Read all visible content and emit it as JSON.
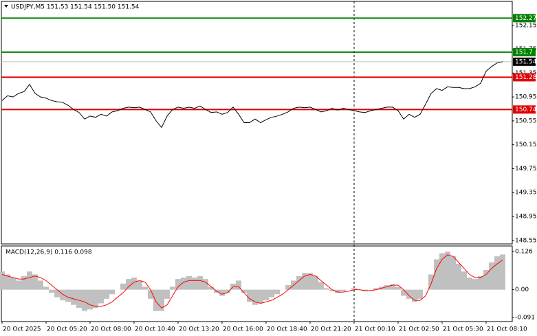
{
  "chart_data": [
    {
      "type": "line",
      "title": "USDJPY,M5  151.53 151.54 151.50 151.54",
      "color": "#000000",
      "values": [
        150.89,
        150.97,
        150.95,
        151.01,
        151.04,
        151.16,
        151.01,
        150.95,
        150.93,
        150.89,
        150.87,
        150.86,
        150.81,
        150.74,
        150.69,
        150.58,
        150.63,
        150.61,
        150.66,
        150.63,
        150.7,
        150.72,
        150.76,
        150.78,
        150.77,
        150.78,
        150.74,
        150.7,
        150.55,
        150.44,
        150.63,
        150.74,
        150.78,
        150.76,
        150.78,
        150.76,
        150.8,
        150.74,
        150.69,
        150.7,
        150.66,
        150.69,
        150.78,
        150.66,
        150.52,
        150.52,
        150.58,
        150.52,
        150.57,
        150.61,
        150.63,
        150.66,
        150.7,
        150.76,
        150.78,
        150.77,
        150.78,
        150.74,
        150.7,
        150.72,
        150.76,
        150.73,
        150.76,
        150.74,
        150.72,
        150.7,
        150.69,
        150.72,
        150.74,
        150.76,
        150.78,
        150.78,
        150.72,
        150.58,
        150.66,
        150.61,
        150.66,
        150.83,
        151.01,
        151.09,
        151.06,
        151.12,
        151.11,
        151.11,
        151.09,
        151.09,
        151.12,
        151.18,
        151.38,
        151.46,
        151.52,
        151.54
      ],
      "ylim": [
        148.49,
        152.55
      ],
      "yticks": [
        152.15,
        151.75,
        151.35,
        150.95,
        150.55,
        150.15,
        149.75,
        149.35,
        148.95,
        148.55
      ],
      "levels": [
        {
          "value": 152.27,
          "color": "#008000"
        },
        {
          "value": 151.7,
          "color": "#008000"
        },
        {
          "value": 151.28,
          "color": "#e00000"
        },
        {
          "value": 150.74,
          "color": "#e00000"
        }
      ],
      "last": 151.54
    },
    {
      "type": "bar",
      "title": "MACD(12,26,9) 0.116 0.098",
      "categories": [
        "20 Oct 2025",
        null,
        null,
        null,
        null,
        null,
        null,
        null,
        "20 Oct 05:20",
        null,
        null,
        null,
        null,
        null,
        null,
        null,
        "20 Oct 08:00",
        null,
        null,
        null,
        null,
        null,
        null,
        null,
        "20 Oct 10:40",
        null,
        null,
        null,
        null,
        null,
        null,
        null,
        "20 Oct 13:20",
        null,
        null,
        null,
        null,
        null,
        null,
        null,
        "20 Oct 16:00",
        null,
        null,
        null,
        null,
        null,
        null,
        null,
        "20 Oct 18:40",
        null,
        null,
        null,
        null,
        null,
        null,
        null,
        "20 Oct 21:20",
        null,
        null,
        null,
        null,
        null,
        null,
        null,
        "21 Oct 00:10",
        null,
        null,
        null,
        null,
        null,
        null,
        null,
        "21 Oct 02:50",
        null,
        null,
        null,
        null,
        null,
        null,
        null,
        "21 Oct 05:30",
        null,
        null,
        null,
        null,
        null,
        null,
        null,
        "21 Oct 08:10",
        null,
        null,
        null
      ],
      "series": [
        {
          "type": "bar",
          "color": "#c0c0c0",
          "values": [
            0.06,
            0.05,
            0.04,
            0.03,
            0.045,
            0.06,
            0.05,
            0.03,
            0.01,
            -0.01,
            -0.025,
            -0.035,
            -0.04,
            -0.05,
            -0.06,
            -0.07,
            -0.065,
            -0.06,
            -0.045,
            -0.03,
            -0.015,
            0.0,
            0.02,
            0.035,
            0.04,
            0.03,
            0.01,
            -0.03,
            -0.07,
            -0.07,
            -0.03,
            0.01,
            0.035,
            0.04,
            0.045,
            0.04,
            0.045,
            0.035,
            0.01,
            -0.01,
            -0.02,
            -0.01,
            0.02,
            0.03,
            -0.01,
            -0.04,
            -0.05,
            -0.045,
            -0.035,
            -0.025,
            -0.015,
            0.0,
            0.015,
            0.03,
            0.045,
            0.055,
            0.055,
            0.045,
            0.025,
            0.005,
            -0.005,
            -0.01,
            -0.005,
            0.0,
            0.005,
            0.0,
            -0.005,
            0.0,
            0.005,
            0.01,
            0.015,
            0.018,
            0.01,
            -0.02,
            -0.03,
            -0.04,
            -0.03,
            0.0,
            0.05,
            0.1,
            0.12,
            0.125,
            0.11,
            0.085,
            0.06,
            0.04,
            0.035,
            0.045,
            0.065,
            0.09,
            0.11,
            0.116
          ]
        },
        {
          "type": "line",
          "color": "#ff0000",
          "values": [
            0.05,
            0.045,
            0.04,
            0.035,
            0.035,
            0.04,
            0.045,
            0.04,
            0.03,
            0.015,
            0.0,
            -0.015,
            -0.025,
            -0.03,
            -0.035,
            -0.04,
            -0.05,
            -0.055,
            -0.055,
            -0.05,
            -0.04,
            -0.025,
            -0.01,
            0.01,
            0.025,
            0.03,
            0.025,
            0.0,
            -0.04,
            -0.06,
            -0.05,
            -0.02,
            0.01,
            0.025,
            0.03,
            0.03,
            0.03,
            0.025,
            0.01,
            -0.005,
            -0.015,
            -0.01,
            0.01,
            0.01,
            -0.01,
            -0.03,
            -0.04,
            -0.045,
            -0.04,
            -0.035,
            -0.025,
            -0.015,
            0.0,
            0.015,
            0.03,
            0.045,
            0.05,
            0.045,
            0.03,
            0.015,
            0.0,
            -0.008,
            -0.008,
            -0.005,
            0.0,
            0.0,
            -0.003,
            -0.003,
            0.0,
            0.005,
            0.01,
            0.015,
            0.015,
            0.0,
            -0.02,
            -0.035,
            -0.035,
            -0.02,
            0.02,
            0.07,
            0.1,
            0.115,
            0.11,
            0.09,
            0.07,
            0.05,
            0.04,
            0.04,
            0.05,
            0.07,
            0.085,
            0.098
          ]
        }
      ],
      "ylim": [
        -0.105,
        0.144
      ],
      "yticks": [
        0.126,
        {
          "value": 0,
          "label": "0.00"
        },
        -0.091
      ]
    }
  ]
}
